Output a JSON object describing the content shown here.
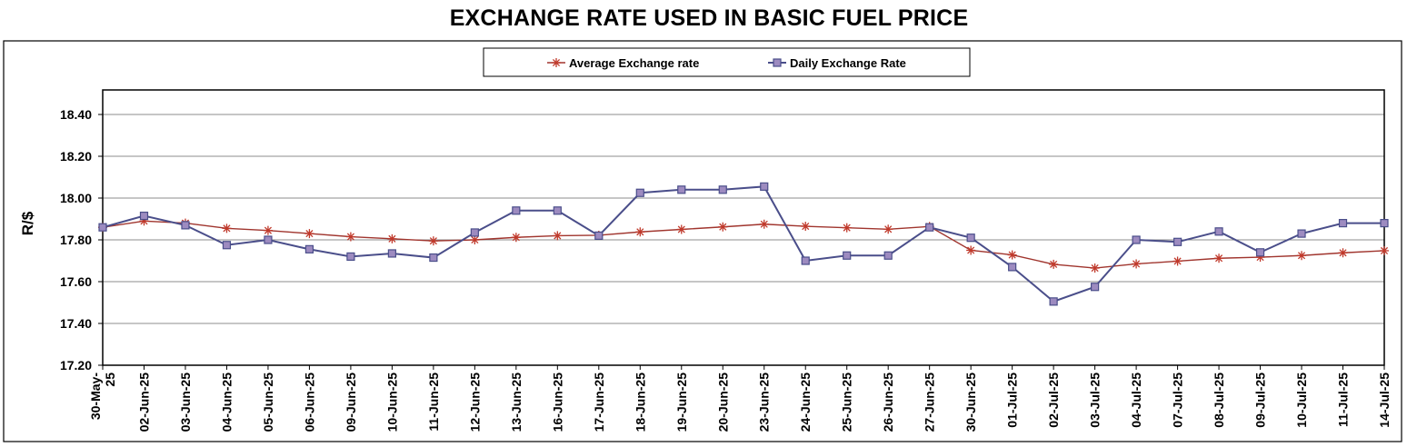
{
  "chart_data": {
    "type": "line",
    "title": "EXCHANGE RATE USED IN BASIC FUEL PRICE",
    "xlabel": "",
    "ylabel": "R/$",
    "ylim": [
      17.2,
      18.4
    ],
    "yticks": [
      "17.20",
      "17.40",
      "17.60",
      "17.80",
      "18.00",
      "18.20",
      "18.40"
    ],
    "grid": true,
    "legend_position": "top-center",
    "categories": [
      "30-May-25",
      "02-Jun-25",
      "03-Jun-25",
      "04-Jun-25",
      "05-Jun-25",
      "06-Jun-25",
      "09-Jun-25",
      "10-Jun-25",
      "11-Jun-25",
      "12-Jun-25",
      "13-Jun-25",
      "16-Jun-25",
      "17-Jun-25",
      "18-Jun-25",
      "19-Jun-25",
      "20-Jun-25",
      "23-Jun-25",
      "24-Jun-25",
      "25-Jun-25",
      "26-Jun-25",
      "27-Jun-25",
      "30-Jun-25",
      "01-Jul-25",
      "02-Jul-25",
      "03-Jul-25",
      "04-Jul-25",
      "07-Jul-25",
      "08-Jul-25",
      "09-Jul-25",
      "10-Jul-25",
      "11-Jul-25",
      "14-Jul-25"
    ],
    "category_lines": [
      [
        "30-May-",
        "25"
      ]
    ],
    "series": [
      {
        "name": "Average Exchange rate",
        "color": "#A0352E",
        "marker": "asterisk",
        "values": [
          17.86,
          17.89,
          17.88,
          17.855,
          17.845,
          17.83,
          17.815,
          17.805,
          17.795,
          17.8,
          17.812,
          17.82,
          17.822,
          17.838,
          17.85,
          17.862,
          17.875,
          17.865,
          17.858,
          17.851,
          17.864,
          17.75,
          17.728,
          17.683,
          17.665,
          17.685,
          17.698,
          17.712,
          17.717,
          17.725,
          17.738,
          17.748
        ]
      },
      {
        "name": "Daily Exchange Rate",
        "color": "#4A4E8A",
        "marker": "square",
        "values": [
          17.86,
          17.915,
          17.87,
          17.775,
          17.8,
          17.755,
          17.72,
          17.735,
          17.715,
          17.835,
          17.94,
          17.94,
          17.82,
          18.025,
          18.04,
          18.04,
          18.055,
          17.7,
          17.725,
          17.725,
          17.86,
          17.81,
          17.67,
          17.505,
          17.575,
          17.8,
          17.79,
          17.84,
          17.74,
          17.83,
          17.88,
          17.88
        ]
      }
    ]
  }
}
